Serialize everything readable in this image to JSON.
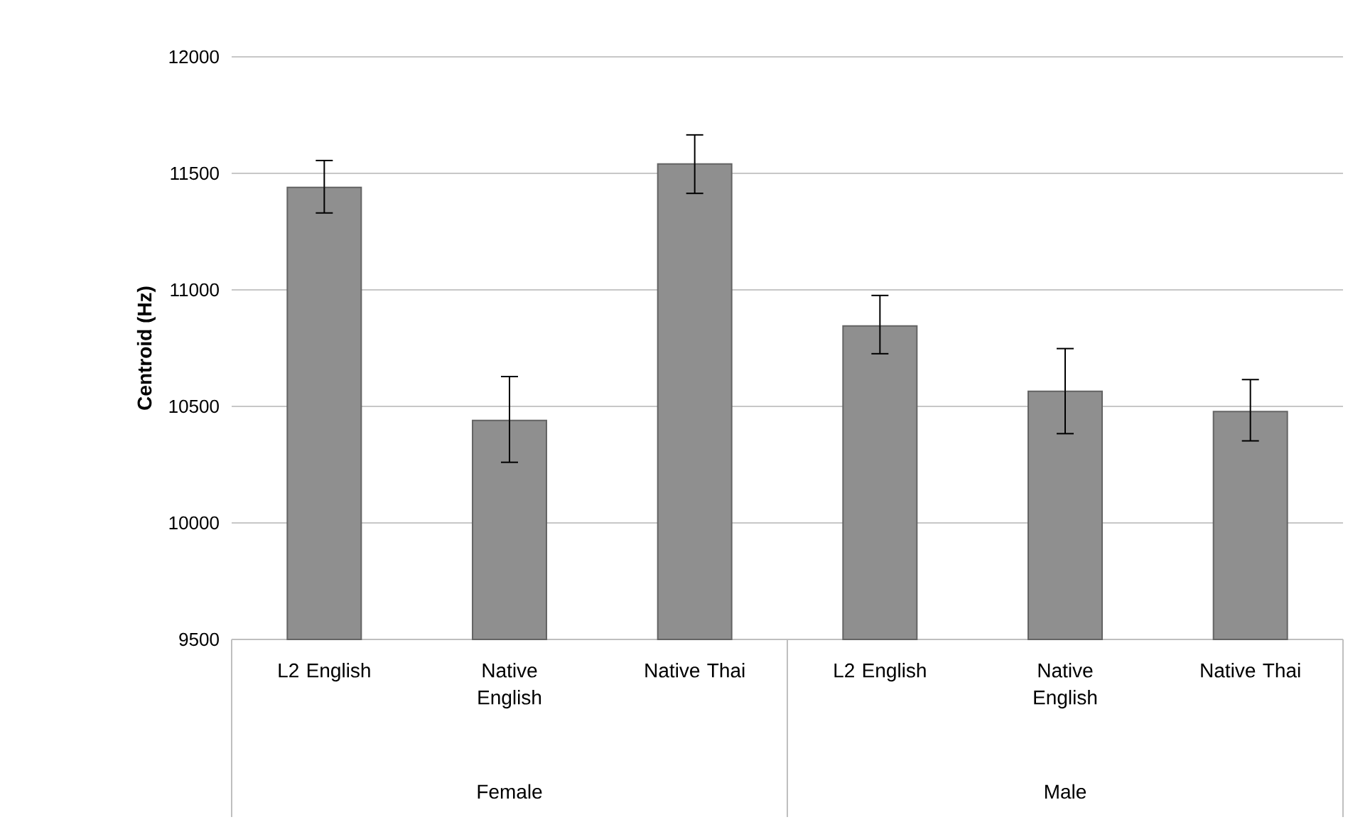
{
  "chart_data": {
    "type": "bar",
    "ylabel": "Centroid (Hz)",
    "categories": [
      "L2 English",
      "Native English",
      "Native Thai",
      "L2 English",
      "Native English",
      "Native Thai"
    ],
    "values": [
      11440,
      10440,
      11540,
      10845,
      10565,
      10478
    ],
    "errors": [
      [
        11330,
        11555
      ],
      [
        10260,
        10628
      ],
      [
        11414,
        11665
      ],
      [
        10726,
        10976
      ],
      [
        10383,
        10748
      ],
      [
        10352,
        10615
      ]
    ],
    "color": "#8f8f8f",
    "ylim": [
      9500,
      12000
    ],
    "yticks": [
      9500,
      10000,
      10500,
      11000,
      11500,
      12000
    ],
    "grid": "y",
    "annotations": [
      "Female",
      "Male"
    ]
  }
}
